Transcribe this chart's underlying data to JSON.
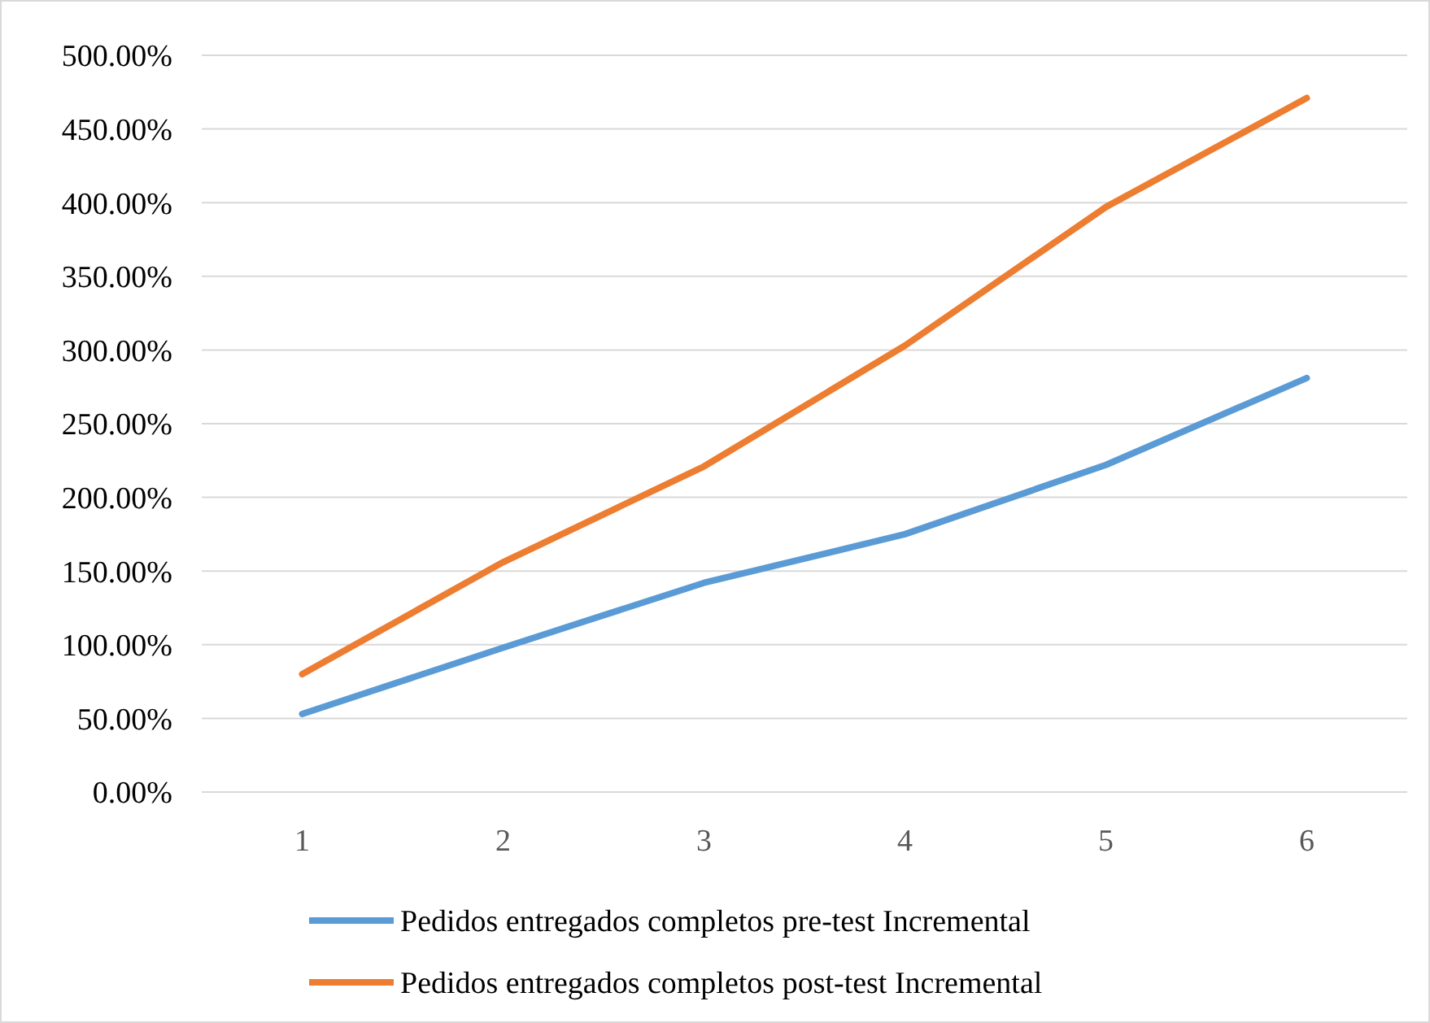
{
  "chart_data": {
    "type": "line",
    "categories": [
      "1",
      "2",
      "3",
      "4",
      "5",
      "6"
    ],
    "series": [
      {
        "name": "Pedidos entregados completos pre-test Incremental",
        "color": "#5b9bd5",
        "values": [
          53,
          98,
          142,
          175,
          222,
          281
        ]
      },
      {
        "name": "Pedidos entregados completos post-test Incremental",
        "color": "#ed7d31",
        "values": [
          80,
          156,
          221,
          303,
          397,
          471
        ]
      }
    ],
    "ylim": [
      0,
      500
    ],
    "yticks": [
      {
        "value": 0,
        "label": "0.00%"
      },
      {
        "value": 50,
        "label": "50.00%"
      },
      {
        "value": 100,
        "label": "100.00%"
      },
      {
        "value": 150,
        "label": "150.00%"
      },
      {
        "value": 200,
        "label": "200.00%"
      },
      {
        "value": 250,
        "label": "250.00%"
      },
      {
        "value": 300,
        "label": "300.00%"
      },
      {
        "value": 350,
        "label": "350.00%"
      },
      {
        "value": 400,
        "label": "400.00%"
      },
      {
        "value": 450,
        "label": "450.00%"
      },
      {
        "value": 500,
        "label": "500.00%"
      }
    ],
    "grid": "y",
    "legend": "bottom",
    "line_style": "solid",
    "marker": "none"
  }
}
